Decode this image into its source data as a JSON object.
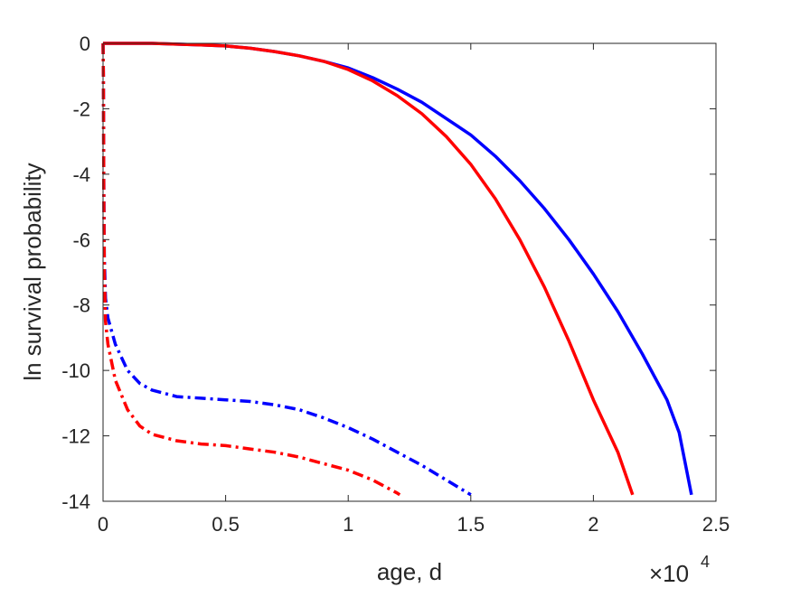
{
  "chart_data": {
    "type": "line",
    "title": "",
    "xlabel": "age, d",
    "ylabel": "ln survival probability",
    "x_multiplier": {
      "base": "×10",
      "exponent": "4"
    },
    "xlim": [
      0,
      2.5
    ],
    "ylim": [
      -14,
      0
    ],
    "x_ticks": [
      0,
      0.5,
      1,
      1.5,
      2,
      2.5
    ],
    "x_tick_labels": [
      "0",
      "0.5",
      "1",
      "1.5",
      "2",
      "2.5"
    ],
    "y_ticks": [
      0,
      -2,
      -4,
      -6,
      -8,
      -10,
      -12,
      -14
    ],
    "y_tick_labels": [
      "0",
      "-2",
      "-4",
      "-6",
      "-8",
      "-10",
      "-12",
      "-14"
    ],
    "grid": false,
    "legend": "none",
    "series": [
      {
        "color": "#0000ff",
        "style": "solid",
        "points": [
          [
            0.0,
            0.0
          ],
          [
            0.2,
            0.0
          ],
          [
            0.4,
            -0.05
          ],
          [
            0.5,
            -0.08
          ],
          [
            0.6,
            -0.15
          ],
          [
            0.7,
            -0.25
          ],
          [
            0.8,
            -0.38
          ],
          [
            0.9,
            -0.55
          ],
          [
            1.0,
            -0.75
          ],
          [
            1.1,
            -1.05
          ],
          [
            1.2,
            -1.4
          ],
          [
            1.3,
            -1.8
          ],
          [
            1.4,
            -2.3
          ],
          [
            1.5,
            -2.8
          ],
          [
            1.6,
            -3.45
          ],
          [
            1.7,
            -4.2
          ],
          [
            1.8,
            -5.05
          ],
          [
            1.9,
            -6.0
          ],
          [
            2.0,
            -7.05
          ],
          [
            2.1,
            -8.2
          ],
          [
            2.2,
            -9.5
          ],
          [
            2.3,
            -10.9
          ],
          [
            2.35,
            -11.9
          ],
          [
            2.4,
            -13.8
          ]
        ]
      },
      {
        "color": "#ff0000",
        "style": "solid",
        "points": [
          [
            0.0,
            0.0
          ],
          [
            0.2,
            0.0
          ],
          [
            0.4,
            -0.05
          ],
          [
            0.5,
            -0.08
          ],
          [
            0.6,
            -0.15
          ],
          [
            0.7,
            -0.25
          ],
          [
            0.8,
            -0.38
          ],
          [
            0.9,
            -0.55
          ],
          [
            1.0,
            -0.8
          ],
          [
            1.1,
            -1.15
          ],
          [
            1.2,
            -1.6
          ],
          [
            1.3,
            -2.15
          ],
          [
            1.4,
            -2.85
          ],
          [
            1.5,
            -3.7
          ],
          [
            1.6,
            -4.75
          ],
          [
            1.7,
            -6.0
          ],
          [
            1.8,
            -7.45
          ],
          [
            1.9,
            -9.1
          ],
          [
            2.0,
            -10.9
          ],
          [
            2.1,
            -12.5
          ],
          [
            2.16,
            -13.8
          ]
        ]
      },
      {
        "color": "#0000ff",
        "style": "dashdot",
        "points": [
          [
            0.0,
            0.0
          ],
          [
            0.0015,
            -1.0
          ],
          [
            0.003,
            -4.0
          ],
          [
            0.005,
            -6.5
          ],
          [
            0.01,
            -7.8
          ],
          [
            0.02,
            -8.4
          ],
          [
            0.05,
            -9.2
          ],
          [
            0.1,
            -10.0
          ],
          [
            0.15,
            -10.4
          ],
          [
            0.2,
            -10.6
          ],
          [
            0.3,
            -10.8
          ],
          [
            0.4,
            -10.85
          ],
          [
            0.5,
            -10.9
          ],
          [
            0.6,
            -10.95
          ],
          [
            0.7,
            -11.05
          ],
          [
            0.8,
            -11.2
          ],
          [
            0.9,
            -11.45
          ],
          [
            1.0,
            -11.75
          ],
          [
            1.1,
            -12.1
          ],
          [
            1.2,
            -12.5
          ],
          [
            1.3,
            -12.9
          ],
          [
            1.4,
            -13.35
          ],
          [
            1.5,
            -13.8
          ]
        ]
      },
      {
        "color": "#ff0000",
        "style": "dashdot",
        "points": [
          [
            0.0,
            0.0
          ],
          [
            0.0015,
            -1.0
          ],
          [
            0.003,
            -4.5
          ],
          [
            0.005,
            -7.0
          ],
          [
            0.01,
            -8.5
          ],
          [
            0.02,
            -9.2
          ],
          [
            0.05,
            -10.3
          ],
          [
            0.1,
            -11.2
          ],
          [
            0.15,
            -11.7
          ],
          [
            0.2,
            -11.95
          ],
          [
            0.3,
            -12.15
          ],
          [
            0.4,
            -12.25
          ],
          [
            0.5,
            -12.3
          ],
          [
            0.6,
            -12.4
          ],
          [
            0.7,
            -12.5
          ],
          [
            0.8,
            -12.65
          ],
          [
            0.9,
            -12.85
          ],
          [
            1.0,
            -13.05
          ],
          [
            1.1,
            -13.35
          ],
          [
            1.2,
            -13.75
          ],
          [
            1.21,
            -13.8
          ]
        ]
      }
    ]
  }
}
